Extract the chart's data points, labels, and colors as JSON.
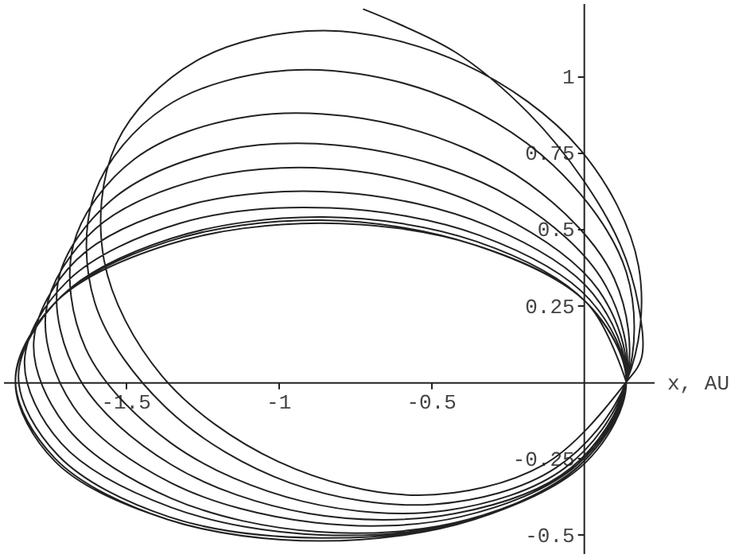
{
  "chart_data": {
    "type": "line",
    "xlabel": "x, AU",
    "color": "#222222",
    "grid": false,
    "xlim": [
      -1.9,
      0.23
    ],
    "ylim": [
      -0.56,
      1.24
    ],
    "xticks": [
      -1.5,
      -1,
      -0.5
    ],
    "yticks": [
      -0.5,
      -0.25,
      0.25,
      0.5,
      0.75,
      1
    ],
    "x": [
      -0.72,
      -0.42,
      -0.18,
      0,
      0.12,
      0.18,
      0.19,
      0.14,
      -0.13,
      -0.54,
      -1.0,
      -1.38,
      -1.57,
      -1.53,
      -1.27,
      -0.85,
      -0.39,
      -0.01,
      0.18,
      0.14,
      -0.09,
      -0.49,
      -0.96,
      -1.36,
      -1.6,
      -1.6,
      -1.37,
      -0.97,
      -0.5,
      -0.1,
      0.14,
      0.14,
      -0.06,
      -0.45,
      -0.92,
      -1.35,
      -1.63,
      -1.67,
      -1.47,
      -1.09,
      -0.61,
      -0.18,
      0.1,
      0.14,
      -0.04,
      -0.42,
      -0.9,
      -1.35,
      -1.65,
      -1.72,
      -1.54,
      -1.17,
      -0.69,
      -0.23,
      0.07,
      0.14,
      -0.02,
      -0.4,
      -0.88,
      -1.35,
      -1.67,
      -1.76,
      -1.6,
      -1.23,
      -0.74,
      -0.28,
      0.05,
      0.14,
      -0.01,
      -0.38,
      -0.87,
      -1.35,
      -1.69,
      -1.8,
      -1.66,
      -1.29,
      -0.79,
      -0.31,
      0.03,
      0.14,
      0,
      -0.37,
      -0.86,
      -1.35,
      -1.71,
      -1.83,
      -1.69,
      -1.32,
      -0.83,
      -0.34,
      0.02,
      0.14,
      0,
      -0.36,
      -0.86,
      -1.36,
      -1.72,
      -1.85,
      -1.71,
      -1.35,
      -0.85,
      -0.35,
      0.01,
      0.14,
      0.01,
      -0.36,
      -0.86,
      -1.36,
      -1.73,
      -1.86,
      -1.72,
      -1.36,
      -0.86,
      -0.36,
      0.01,
      0.14,
      0.01,
      -0.36,
      -0.86,
      -1.36,
      -1.73,
      -1.86,
      -1.73,
      -1.36,
      -0.86,
      -0.36,
      0.01,
      0.14
    ],
    "values": [
      1.22,
      1.08,
      0.88,
      0.66,
      0.45,
      0.25,
      0.08,
      0,
      -0.27,
      -0.37,
      -0.26,
      0.02,
      0.4,
      0.78,
      1.05,
      1.15,
      1.04,
      0.76,
      0.38,
      0,
      -0.28,
      -0.4,
      -0.33,
      -0.09,
      0.26,
      0.62,
      0.9,
      1.02,
      0.95,
      0.71,
      0.36,
      0,
      -0.28,
      -0.42,
      -0.39,
      -0.2,
      0.11,
      0.45,
      0.73,
      0.87,
      0.84,
      0.65,
      0.34,
      0,
      -0.28,
      -0.43,
      -0.43,
      -0.27,
      0.01,
      0.33,
      0.6,
      0.76,
      0.76,
      0.6,
      0.32,
      0,
      -0.27,
      -0.44,
      -0.46,
      -0.33,
      -0.08,
      0.23,
      0.5,
      0.67,
      0.69,
      0.55,
      0.3,
      0,
      -0.27,
      -0.45,
      -0.49,
      -0.38,
      -0.15,
      0.13,
      0.4,
      0.58,
      0.62,
      0.51,
      0.29,
      0,
      -0.26,
      -0.45,
      -0.5,
      -0.41,
      -0.2,
      0.07,
      0.33,
      0.52,
      0.57,
      0.48,
      0.27,
      0,
      -0.26,
      -0.45,
      -0.51,
      -0.44,
      -0.24,
      0.02,
      0.28,
      0.47,
      0.54,
      0.46,
      0.26,
      0,
      -0.26,
      -0.45,
      -0.52,
      -0.45,
      -0.25,
      0.01,
      0.27,
      0.46,
      0.53,
      0.45,
      0.26,
      0,
      -0.26,
      -0.45,
      -0.52,
      -0.45,
      -0.26,
      0,
      0.26,
      0.45,
      0.52,
      0.45,
      0.26,
      0
    ]
  }
}
